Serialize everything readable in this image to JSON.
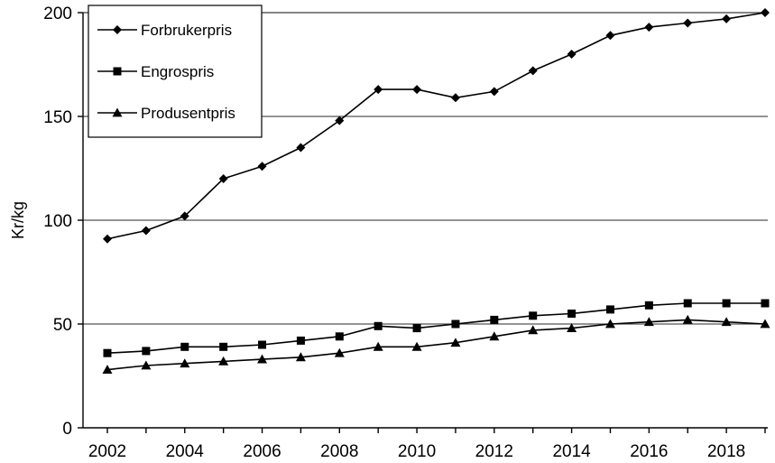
{
  "chart_data": {
    "type": "line",
    "title": "",
    "xlabel": "",
    "ylabel": "Kr/kg",
    "x": [
      2002,
      2003,
      2004,
      2005,
      2006,
      2007,
      2008,
      2009,
      2010,
      2011,
      2012,
      2013,
      2014,
      2015,
      2016,
      2017,
      2018,
      2019
    ],
    "x_tick_labels": [
      "2002",
      "2004",
      "2006",
      "2008",
      "2010",
      "2012",
      "2014",
      "2016",
      "2018"
    ],
    "y_tick_labels": [
      "0",
      "50",
      "100",
      "150",
      "200"
    ],
    "ylim": [
      0,
      200
    ],
    "xlim": [
      2002,
      2019
    ],
    "grid": "horizontal",
    "legend_position": "top-left",
    "series": [
      {
        "name": "Forbrukerpris",
        "marker": "diamond",
        "values": [
          91,
          95,
          102,
          120,
          126,
          135,
          148,
          163,
          163,
          159,
          162,
          172,
          180,
          189,
          193,
          195,
          197,
          200
        ]
      },
      {
        "name": "Engrospris",
        "marker": "square",
        "values": [
          36,
          37,
          39,
          39,
          40,
          42,
          44,
          49,
          48,
          50,
          52,
          54,
          55,
          57,
          59,
          60,
          60,
          60
        ]
      },
      {
        "name": "Produsentpris",
        "marker": "triangle",
        "values": [
          28,
          30,
          31,
          32,
          33,
          34,
          36,
          39,
          39,
          41,
          44,
          47,
          48,
          50,
          51,
          52,
          51,
          50
        ]
      }
    ]
  }
}
